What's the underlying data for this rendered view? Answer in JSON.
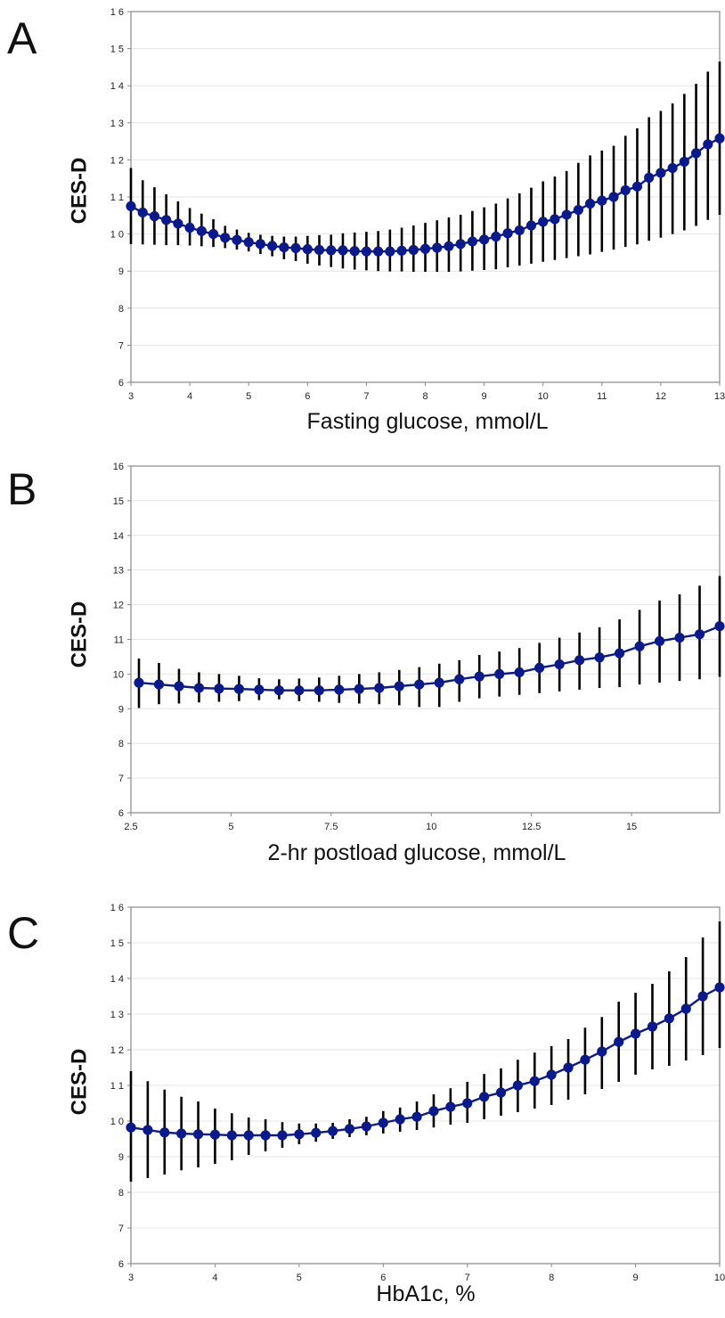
{
  "chart_data": [
    {
      "panel": "A",
      "type": "line",
      "xlabel": "Fasting glucose, mmol/L",
      "ylabel": "CES-D",
      "xlim": [
        3,
        13
      ],
      "ylim": [
        6,
        16
      ],
      "xticks": [
        3,
        4,
        5,
        6,
        7,
        8,
        9,
        10,
        11,
        12,
        13
      ],
      "yticks": [
        6,
        7,
        8,
        9,
        10,
        11,
        12,
        13,
        14,
        15,
        16
      ],
      "ytick_labels": [
        "6",
        "7",
        "8",
        "9",
        "1 0",
        "1 1",
        "1 2",
        "1 3",
        "1 4",
        "1 5",
        "1 6"
      ],
      "grid": "horizontal",
      "color": "#0a1a8c",
      "points": [
        [
          3.0,
          10.75,
          9.73,
          11.78
        ],
        [
          3.2,
          10.58,
          9.72,
          11.45
        ],
        [
          3.4,
          10.48,
          9.71,
          11.26
        ],
        [
          3.6,
          10.38,
          9.7,
          11.07
        ],
        [
          3.8,
          10.28,
          9.7,
          10.88
        ],
        [
          4.0,
          10.17,
          9.69,
          10.7
        ],
        [
          4.2,
          10.08,
          9.67,
          10.55
        ],
        [
          4.4,
          10.0,
          9.65,
          10.4
        ],
        [
          4.6,
          9.9,
          9.62,
          10.22
        ],
        [
          4.8,
          9.84,
          9.58,
          10.12
        ],
        [
          5.0,
          9.78,
          9.53,
          10.03
        ],
        [
          5.2,
          9.73,
          9.46,
          9.98
        ],
        [
          5.4,
          9.68,
          9.4,
          9.95
        ],
        [
          5.6,
          9.64,
          9.32,
          9.93
        ],
        [
          5.8,
          9.62,
          9.27,
          9.93
        ],
        [
          6.0,
          9.59,
          9.2,
          9.95
        ],
        [
          6.2,
          9.57,
          9.15,
          9.97
        ],
        [
          6.4,
          9.56,
          9.11,
          9.98
        ],
        [
          6.6,
          9.56,
          9.07,
          10.02
        ],
        [
          6.8,
          9.54,
          9.04,
          10.04
        ],
        [
          7.0,
          9.53,
          9.02,
          10.06
        ],
        [
          7.2,
          9.53,
          9.0,
          10.08
        ],
        [
          7.4,
          9.53,
          8.99,
          10.12
        ],
        [
          7.6,
          9.55,
          8.99,
          10.17
        ],
        [
          7.8,
          9.57,
          8.98,
          10.23
        ],
        [
          8.0,
          9.6,
          8.98,
          10.3
        ],
        [
          8.2,
          9.63,
          8.98,
          10.37
        ],
        [
          8.4,
          9.67,
          8.98,
          10.45
        ],
        [
          8.6,
          9.73,
          8.99,
          10.52
        ],
        [
          8.8,
          9.8,
          9.01,
          10.62
        ],
        [
          9.0,
          9.85,
          9.03,
          10.72
        ],
        [
          9.2,
          9.93,
          9.05,
          10.82
        ],
        [
          9.4,
          10.02,
          9.1,
          10.96
        ],
        [
          9.6,
          10.1,
          9.15,
          11.1
        ],
        [
          9.8,
          10.23,
          9.2,
          11.25
        ],
        [
          10.0,
          10.33,
          9.25,
          11.42
        ],
        [
          10.2,
          10.4,
          9.3,
          11.55
        ],
        [
          10.4,
          10.52,
          9.35,
          11.7
        ],
        [
          10.6,
          10.65,
          9.4,
          11.92
        ],
        [
          10.8,
          10.82,
          9.45,
          12.12
        ],
        [
          11.0,
          10.9,
          9.52,
          12.25
        ],
        [
          11.2,
          11.0,
          9.58,
          12.38
        ],
        [
          11.4,
          11.18,
          9.65,
          12.65
        ],
        [
          11.6,
          11.28,
          9.72,
          12.85
        ],
        [
          11.8,
          11.52,
          9.82,
          13.15
        ],
        [
          12.0,
          11.65,
          9.9,
          13.32
        ],
        [
          12.2,
          11.78,
          10.0,
          13.52
        ],
        [
          12.4,
          11.95,
          10.1,
          13.78
        ],
        [
          12.6,
          12.18,
          10.22,
          14.05
        ],
        [
          12.8,
          12.42,
          10.38,
          14.38
        ],
        [
          13.0,
          12.58,
          10.52,
          14.65
        ]
      ]
    },
    {
      "panel": "B",
      "type": "line",
      "xlabel": "2-hr postload glucose, mmol/L",
      "ylabel": "CES-D",
      "xlim": [
        2.5,
        17.2
      ],
      "ylim": [
        6,
        16
      ],
      "xticks": [
        2.5,
        5,
        7.5,
        10,
        12.5,
        15
      ],
      "xtick_labels": [
        "2.5",
        "5",
        "7.5",
        "10",
        "12.5",
        "15"
      ],
      "yticks": [
        6,
        7,
        8,
        9,
        10,
        11,
        12,
        13,
        14,
        15,
        16
      ],
      "ytick_labels": [
        "6",
        "7",
        "8",
        "9",
        "10",
        "11",
        "12",
        "13",
        "14",
        "15",
        "16"
      ],
      "grid": "horizontal",
      "color": "#0a1a8c",
      "points": [
        [
          2.7,
          9.75,
          9.02,
          10.45
        ],
        [
          3.2,
          9.7,
          9.13,
          10.32
        ],
        [
          3.7,
          9.65,
          9.15,
          10.15
        ],
        [
          4.2,
          9.6,
          9.18,
          10.05
        ],
        [
          4.7,
          9.58,
          9.2,
          10.0
        ],
        [
          5.2,
          9.57,
          9.22,
          9.95
        ],
        [
          5.7,
          9.55,
          9.25,
          9.88
        ],
        [
          6.2,
          9.53,
          9.27,
          9.85
        ],
        [
          6.7,
          9.53,
          9.22,
          9.87
        ],
        [
          7.2,
          9.53,
          9.2,
          9.9
        ],
        [
          7.7,
          9.55,
          9.17,
          9.95
        ],
        [
          8.2,
          9.57,
          9.15,
          10.0
        ],
        [
          8.7,
          9.6,
          9.13,
          10.05
        ],
        [
          9.2,
          9.65,
          9.1,
          10.12
        ],
        [
          9.7,
          9.7,
          9.05,
          10.2
        ],
        [
          10.2,
          9.75,
          9.05,
          10.3
        ],
        [
          10.7,
          9.85,
          9.2,
          10.4
        ],
        [
          11.2,
          9.93,
          9.3,
          10.55
        ],
        [
          11.7,
          10.0,
          9.35,
          10.65
        ],
        [
          12.2,
          10.05,
          9.4,
          10.75
        ],
        [
          12.7,
          10.18,
          9.45,
          10.9
        ],
        [
          13.2,
          10.28,
          9.5,
          11.05
        ],
        [
          13.7,
          10.4,
          9.55,
          11.2
        ],
        [
          14.2,
          10.48,
          9.6,
          11.35
        ],
        [
          14.7,
          10.6,
          9.62,
          11.58
        ],
        [
          15.2,
          10.8,
          9.7,
          11.85
        ],
        [
          15.7,
          10.95,
          9.75,
          12.12
        ],
        [
          16.2,
          11.05,
          9.8,
          12.3
        ],
        [
          16.7,
          11.15,
          9.85,
          12.55
        ],
        [
          17.2,
          11.38,
          9.92,
          12.83
        ]
      ]
    },
    {
      "panel": "C",
      "type": "line",
      "xlabel": "HbA1c, %",
      "ylabel": "CES-D",
      "xlim": [
        3,
        10
      ],
      "ylim": [
        6,
        16
      ],
      "xticks": [
        3,
        4,
        5,
        6,
        7,
        8,
        9,
        10
      ],
      "yticks": [
        6,
        7,
        8,
        9,
        10,
        11,
        12,
        13,
        14,
        15,
        16
      ],
      "ytick_labels": [
        "6",
        "7",
        "8",
        "9",
        "1 0",
        "1 1",
        "1 2",
        "1 3",
        "1 4",
        "1 5",
        "1 6"
      ],
      "grid": "horizontal",
      "color": "#0a1a8c",
      "points": [
        [
          3.0,
          9.82,
          8.3,
          11.4
        ],
        [
          3.2,
          9.75,
          8.4,
          11.12
        ],
        [
          3.4,
          9.68,
          8.5,
          10.88
        ],
        [
          3.6,
          9.65,
          8.62,
          10.68
        ],
        [
          3.8,
          9.63,
          8.7,
          10.55
        ],
        [
          4.0,
          9.62,
          8.8,
          10.35
        ],
        [
          4.2,
          9.6,
          8.9,
          10.22
        ],
        [
          4.4,
          9.6,
          9.05,
          10.1
        ],
        [
          4.6,
          9.6,
          9.15,
          10.05
        ],
        [
          4.8,
          9.6,
          9.25,
          9.97
        ],
        [
          5.0,
          9.63,
          9.35,
          9.93
        ],
        [
          5.2,
          9.67,
          9.42,
          9.93
        ],
        [
          5.4,
          9.72,
          9.5,
          9.95
        ],
        [
          5.6,
          9.78,
          9.55,
          10.05
        ],
        [
          5.8,
          9.85,
          9.6,
          10.12
        ],
        [
          6.0,
          9.95,
          9.65,
          10.28
        ],
        [
          6.2,
          10.05,
          9.7,
          10.38
        ],
        [
          6.4,
          10.12,
          9.75,
          10.55
        ],
        [
          6.6,
          10.28,
          9.82,
          10.75
        ],
        [
          6.8,
          10.4,
          9.9,
          10.92
        ],
        [
          7.0,
          10.5,
          9.95,
          11.1
        ],
        [
          7.2,
          10.68,
          10.05,
          11.32
        ],
        [
          7.4,
          10.8,
          10.15,
          11.48
        ],
        [
          7.6,
          11.0,
          10.25,
          11.72
        ],
        [
          7.8,
          11.12,
          10.35,
          11.92
        ],
        [
          8.0,
          11.3,
          10.45,
          12.1
        ],
        [
          8.2,
          11.5,
          10.6,
          12.3
        ],
        [
          8.4,
          11.72,
          10.75,
          12.62
        ],
        [
          8.6,
          11.95,
          10.9,
          12.92
        ],
        [
          8.8,
          12.22,
          11.1,
          13.35
        ],
        [
          9.0,
          12.45,
          11.3,
          13.6
        ],
        [
          9.2,
          12.65,
          11.45,
          13.85
        ],
        [
          9.4,
          12.88,
          11.55,
          14.2
        ],
        [
          9.6,
          13.15,
          11.7,
          14.6
        ],
        [
          9.8,
          13.5,
          11.85,
          15.15
        ],
        [
          10.0,
          13.75,
          12.05,
          15.6
        ]
      ]
    }
  ],
  "panels": [
    {
      "letter": "A",
      "xlabel": "Fasting glucose, mmol/L",
      "ylabel": "CES-D"
    },
    {
      "letter": "B",
      "xlabel": "2-hr postload glucose, mmol/L",
      "ylabel": "CES-D"
    },
    {
      "letter": "C",
      "xlabel": "HbA1c, %",
      "ylabel": "CES-D"
    }
  ]
}
